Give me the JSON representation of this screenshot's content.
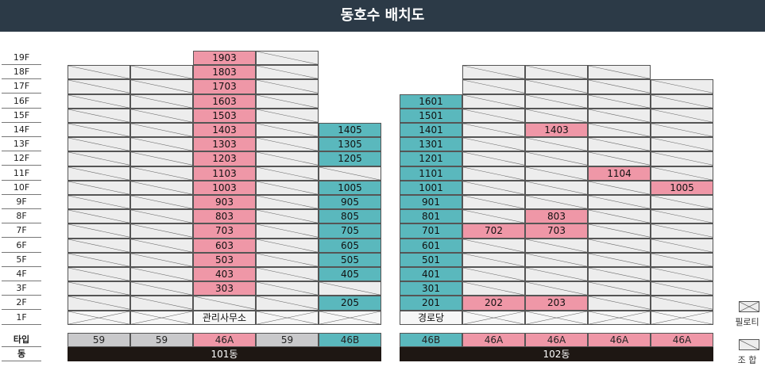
{
  "title": "동호수 배치도",
  "colors": {
    "pink": "#ef97a7",
    "teal": "#5ab8bd",
    "gray": "#ededed",
    "type_gray": "#c9c9cb",
    "bar": "#1e1713"
  },
  "floors": [
    "19F",
    "18F",
    "17F",
    "16F",
    "15F",
    "14F",
    "13F",
    "12F",
    "11F",
    "10F",
    "9F",
    "8F",
    "7F",
    "6F",
    "5F",
    "4F",
    "3F",
    "2F",
    "1F"
  ],
  "row_labels": {
    "type": "타입",
    "building": "동"
  },
  "buildings": [
    {
      "name": "101동",
      "types": [
        {
          "label": "59",
          "color": "type_gray"
        },
        {
          "label": "59",
          "color": "type_gray"
        },
        {
          "label": "46A",
          "color": "pink"
        },
        {
          "label": "59",
          "color": "type_gray"
        },
        {
          "label": "46B",
          "color": "teal"
        }
      ],
      "columns": [
        {
          "top": "18F",
          "cells": {}
        },
        {
          "top": "18F",
          "cells": {}
        },
        {
          "top": "19F",
          "color": "pink",
          "cells": {
            "19F": "1903",
            "18F": "1803",
            "17F": "1703",
            "16F": "1603",
            "15F": "1503",
            "14F": "1403",
            "13F": "1303",
            "12F": "1203",
            "11F": "1103",
            "10F": "1003",
            "9F": "903",
            "8F": "803",
            "7F": "703",
            "6F": "603",
            "5F": "503",
            "4F": "403",
            "3F": "303"
          }
        },
        {
          "top": "19F",
          "cells": {}
        },
        {
          "top": "14F",
          "color": "teal",
          "cells": {
            "14F": "1405",
            "13F": "1305",
            "12F": "1205",
            "10F": "1005",
            "9F": "905",
            "8F": "805",
            "7F": "705",
            "6F": "605",
            "5F": "505",
            "4F": "405",
            "2F": "205"
          }
        }
      ],
      "ground_label": "관리사무소"
    },
    {
      "name": "102동",
      "types": [
        {
          "label": "46B",
          "color": "teal"
        },
        {
          "label": "46A",
          "color": "pink"
        },
        {
          "label": "46A",
          "color": "pink"
        },
        {
          "label": "46A",
          "color": "pink"
        },
        {
          "label": "46A",
          "color": "pink"
        }
      ],
      "columns": [
        {
          "top": "16F",
          "color": "teal",
          "cells": {
            "16F": "1601",
            "15F": "1501",
            "14F": "1401",
            "13F": "1301",
            "12F": "1201",
            "11F": "1101",
            "10F": "1001",
            "9F": "901",
            "8F": "801",
            "7F": "701",
            "6F": "601",
            "5F": "501",
            "4F": "401",
            "3F": "301",
            "2F": "201"
          }
        },
        {
          "top": "18F",
          "color": "pink",
          "cells": {
            "7F": "702",
            "2F": "202"
          }
        },
        {
          "top": "18F",
          "color": "pink",
          "cells": {
            "14F": "1403",
            "8F": "803",
            "7F": "703",
            "2F": "203"
          }
        },
        {
          "top": "18F",
          "color": "pink",
          "cells": {
            "11F": "1104"
          }
        },
        {
          "top": "17F",
          "color": "pink",
          "cells": {
            "10F": "1005"
          }
        }
      ],
      "ground_label": "경로당"
    }
  ],
  "legend": [
    {
      "label": "필로티",
      "icon": "piloti-x-icon"
    },
    {
      "label": "조 합",
      "icon": "union-diagonal-icon"
    }
  ]
}
